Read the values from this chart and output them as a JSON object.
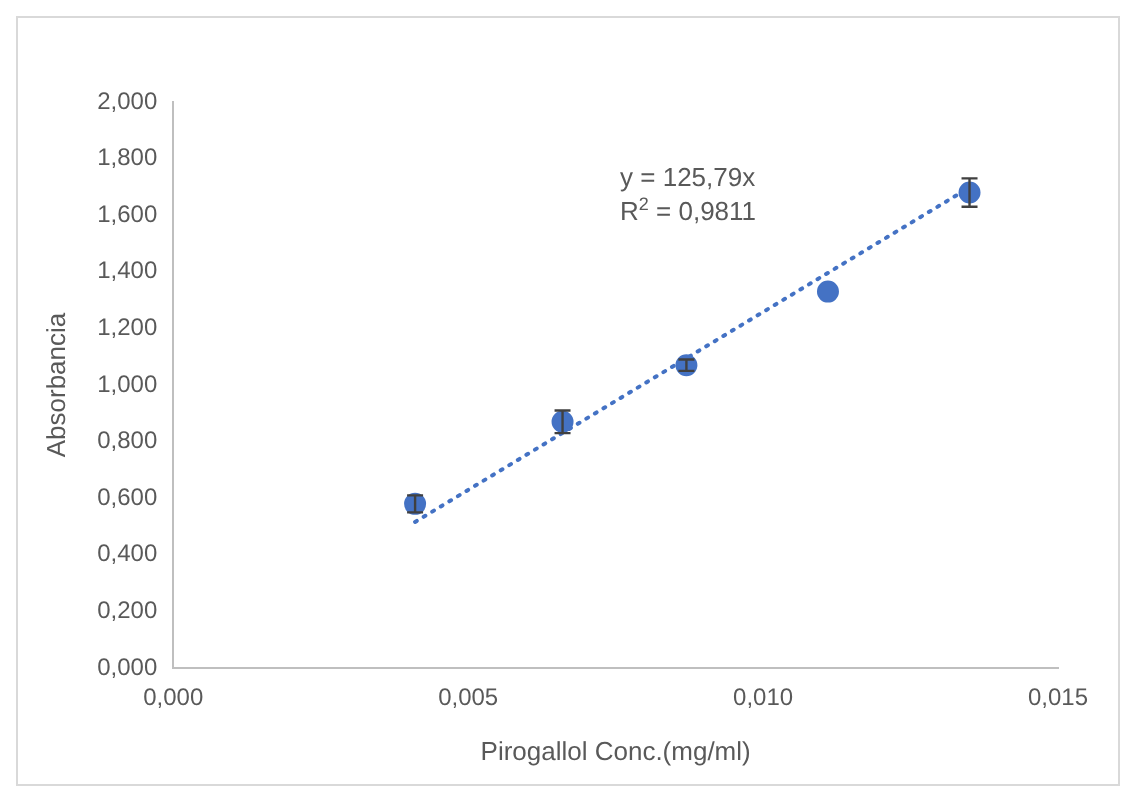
{
  "chart_data": {
    "type": "scatter",
    "xlabel": "Pirogallol Conc.(mg/ml)",
    "ylabel": "Absorbancia",
    "x": [
      0.0041,
      0.0066,
      0.0087,
      0.0111,
      0.0135
    ],
    "series": [
      {
        "type": "scatter",
        "color": "#4472c4",
        "values": [
          0.58,
          0.87,
          1.07,
          1.33,
          1.68
        ],
        "errors": [
          0.03,
          0.04,
          0.02,
          null,
          0.05
        ],
        "marker": "circle"
      },
      {
        "type": "line",
        "color": "#4472c4",
        "x": [
          0.0041,
          0.0135
        ],
        "values": [
          0.516,
          1.698
        ],
        "line_style": "dotted",
        "marker": "none"
      }
    ],
    "annotations": [
      "y = 125,79x",
      "R$^{2}$ = 0,9811"
    ],
    "xlim": [
      0,
      0.015
    ],
    "xticks": [
      {
        "value": 0,
        "label": "0,000"
      },
      {
        "value": 0.005,
        "label": "0,005"
      },
      {
        "value": 0.01,
        "label": "0,010"
      },
      {
        "value": 0.015,
        "label": "0,015"
      }
    ],
    "ylim": [
      0,
      2
    ],
    "yticks": [
      {
        "value": 0,
        "label": "0,000"
      },
      {
        "value": 0.2,
        "label": "0,200"
      },
      {
        "value": 0.4,
        "label": "0,400"
      },
      {
        "value": 0.6,
        "label": "0,600"
      },
      {
        "value": 0.8,
        "label": "0,800"
      },
      {
        "value": 1,
        "label": "1,000"
      },
      {
        "value": 1.2,
        "label": "1,200"
      },
      {
        "value": 1.4,
        "label": "1,400"
      },
      {
        "value": 1.6,
        "label": "1,600"
      },
      {
        "value": 1.8,
        "label": "1,800"
      },
      {
        "value": 2,
        "label": "2,000"
      }
    ],
    "grid": false,
    "legend": false
  }
}
